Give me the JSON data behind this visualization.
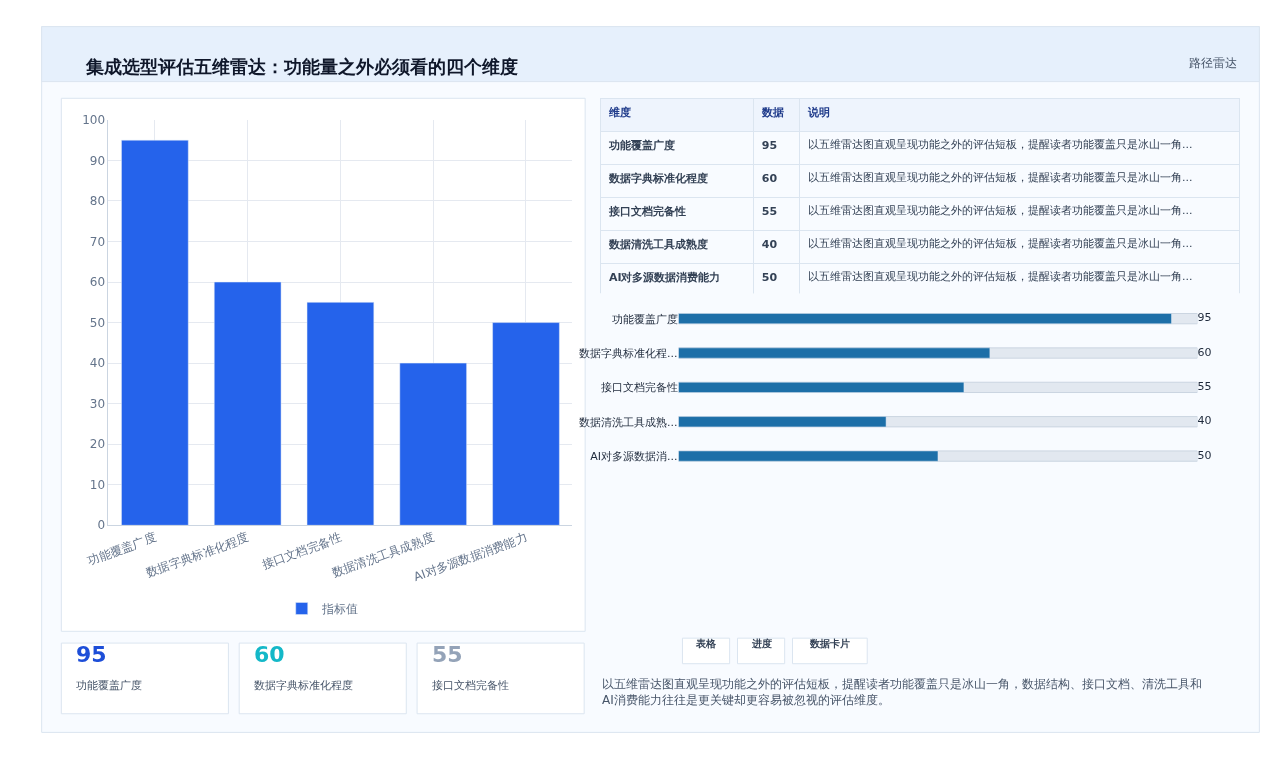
{
  "chart_data": [
    {
      "type": "other",
      "title": "集成选型评估五维雷达：功能量之外必须看的四个维度",
      "subtitle": "路径雷达"
    },
    {
      "type": "bar",
      "categories": [
        "功能覆盖广度",
        "数据字典标准化程度",
        "接口文档完备性",
        "数据清洗工具成熟度",
        "AI对多源数据消费能力"
      ],
      "series": [
        {
          "name": "指标值",
          "color": "#2563eb",
          "values": [
            95,
            60,
            55,
            40,
            50
          ]
        }
      ],
      "ylim": [
        0,
        100
      ],
      "yticks": [
        0,
        10,
        20,
        30,
        40,
        50,
        60,
        70,
        80,
        90,
        100
      ],
      "grid": true,
      "legend": "bottom"
    },
    {
      "type": "other",
      "categories": [
        "功能覆盖广度",
        "数据字典标准化程度",
        "接口文档完备性",
        "数据清洗工具成熟度",
        "AI对多源数据消费能力"
      ],
      "values": [
        95,
        60,
        55,
        40,
        50
      ],
      "data_labels": true,
      "annotations": [
        "维度",
        "数据",
        "说明",
        "以五维雷达图直观呈现功能之外的评估短板，提醒读者功能覆盖只是冰山一角...",
        "以五维雷达图直观呈现功能之外的评估短板，提醒读者功能覆盖只是冰山一角...",
        "以五维雷达图直观呈现功能之外的评估短板，提醒读者功能覆盖只是冰山一角...",
        "以五维雷达图直观呈现功能之外的评估短板，提醒读者功能覆盖只是冰山一角...",
        "以五维雷达图直观呈现功能之外的评估短板，提醒读者功能覆盖只是冰山一角..."
      ]
    },
    {
      "type": "bar",
      "orientation": "horizontal",
      "categories": [
        "功能覆盖广度",
        "数据字典标准化程...",
        "接口文档完备性",
        "数据清洗工具成熟...",
        "AI对多源数据消..."
      ],
      "values": [
        95,
        60,
        55,
        40,
        50
      ],
      "color": "#1d6fa8",
      "xlim": [
        0,
        100
      ],
      "data_labels": true,
      "tick_labels": "y"
    },
    {
      "type": "other",
      "categories": [
        "功能覆盖广度",
        "数据字典标准化程度",
        "接口文档完备性"
      ],
      "values": [
        95,
        60,
        55
      ],
      "data_labels": true,
      "annotations": [
        "表格",
        "进度",
        "数据卡片",
        "以五维雷达图直观呈现功能之外的评估短板，提醒读者功能覆盖只是冰山一角，数据结构、接口文档、清洗工具和AI消费能力往往是更关键却更容易被忽视的评估维度。"
      ]
    }
  ]
}
